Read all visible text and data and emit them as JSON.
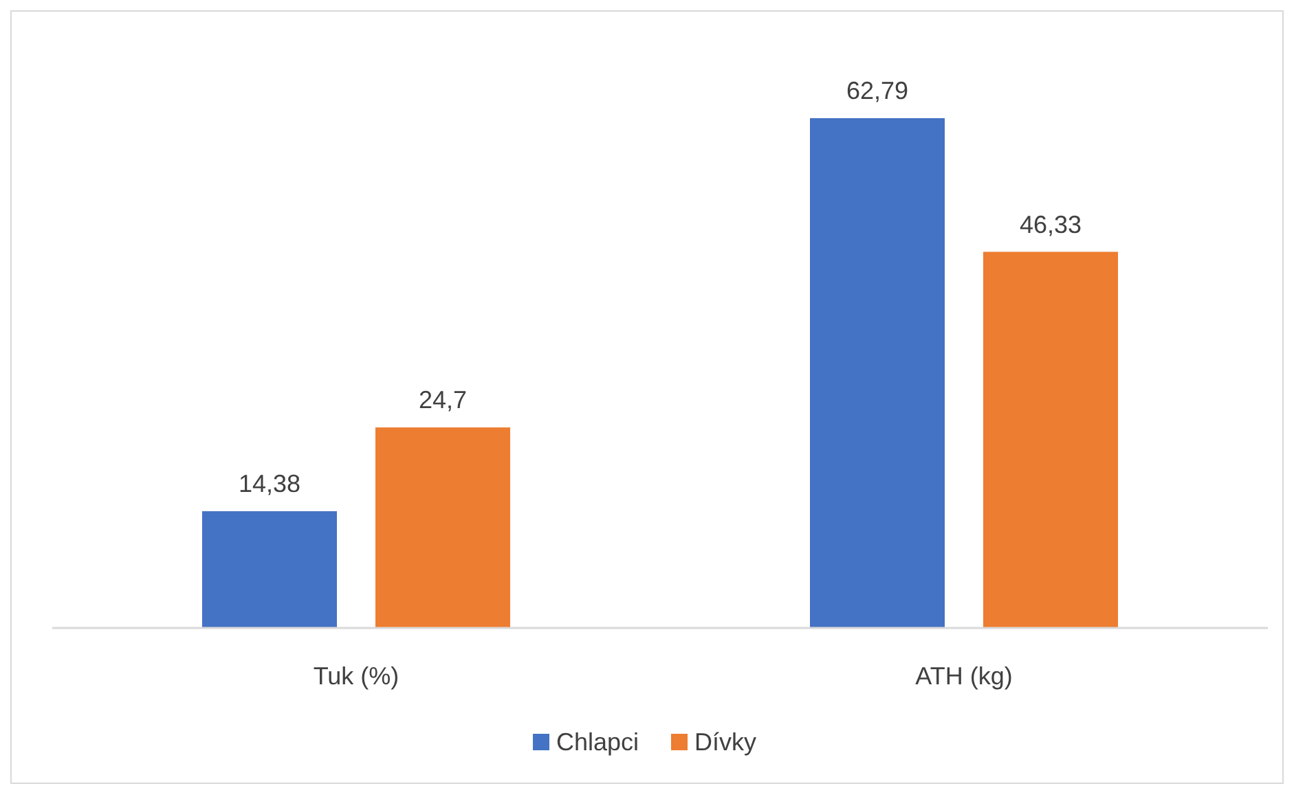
{
  "chart_data": {
    "type": "bar",
    "categories": [
      "Tuk (%)",
      "ATH (kg)"
    ],
    "series": [
      {
        "name": "Chlapci",
        "color": "#4472c4",
        "values": [
          14.38,
          62.79
        ],
        "value_labels": [
          "14,38",
          "62,79"
        ]
      },
      {
        "name": "Dívky",
        "color": "#ed7d31",
        "values": [
          24.7,
          46.33
        ],
        "value_labels": [
          "24,7",
          "46,33"
        ]
      }
    ],
    "legend": "bottom"
  }
}
